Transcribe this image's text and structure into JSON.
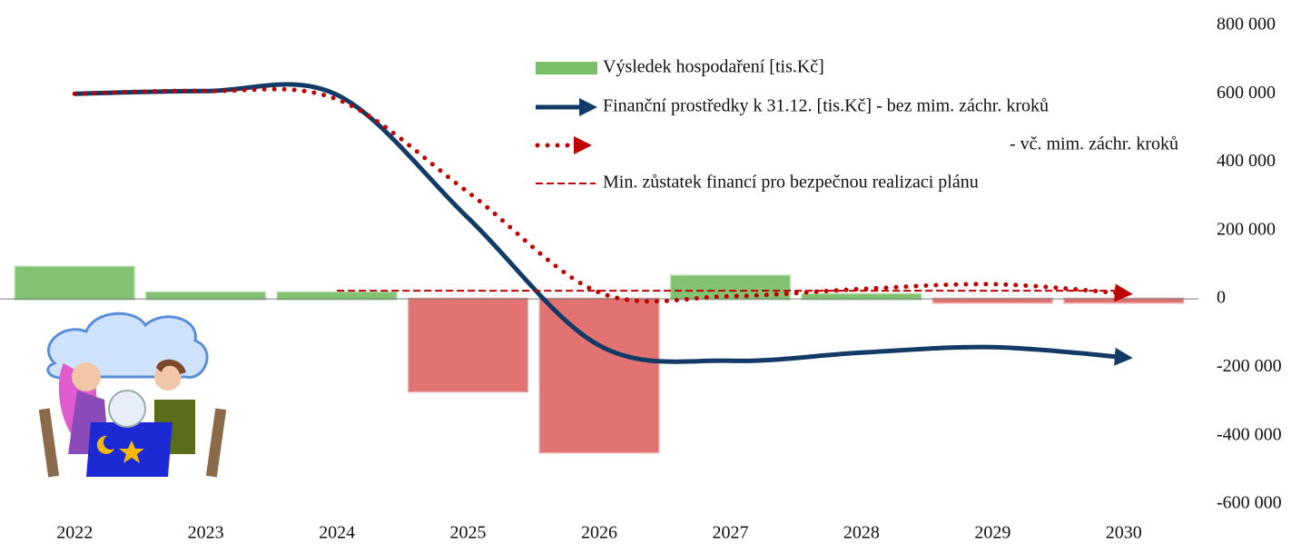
{
  "chart_data": {
    "type": "bar",
    "categories": [
      "2022",
      "2023",
      "2024",
      "2025",
      "2026",
      "2027",
      "2028",
      "2029",
      "2030"
    ],
    "ylim": [
      -600000,
      800000
    ],
    "yticks": [
      {
        "value": -600000,
        "label": "-600 000"
      },
      {
        "value": -400000,
        "label": "-400 000"
      },
      {
        "value": -200000,
        "label": "-200 000"
      },
      0,
      {
        "value": 200000,
        "label": "200 000"
      },
      {
        "value": 400000,
        "label": "400 000"
      },
      {
        "value": 600000,
        "label": "600 000"
      },
      {
        "value": 800000,
        "label": "800 000"
      }
    ],
    "series": [
      {
        "name": "Výsledek hospodaření [tis.Kč]",
        "style": "bar",
        "color": "#7cbf6a",
        "colors": [
          "#7cbf6a",
          "#7cbf6a",
          "#7cbf6a",
          "#e06c6a",
          "#e06c6a",
          "#7cbf6a",
          "#7cbf6a",
          "#e06c6a",
          "#e06c6a"
        ],
        "values": [
          93000,
          18000,
          18000,
          -270000,
          -448000,
          67000,
          13000,
          -10000,
          -10000
        ]
      },
      {
        "name": "Finanční prostředky k 31.12. [tis.Kč] - bez mim. záchr. kroků",
        "style": "line",
        "color": "#123a66",
        "values": [
          600000,
          608000,
          597000,
          237000,
          -136000,
          -181000,
          -157000,
          -141000,
          -171000
        ]
      },
      {
        "name": "- vč. mim. záchr. kroků",
        "style": "dotted",
        "color": "#c00000",
        "values": [
          600000,
          608000,
          584000,
          312000,
          19000,
          8000,
          29000,
          43000,
          16000
        ]
      },
      {
        "name": "Min. zůstatek financí pro bezpečnou realizaci plánu",
        "style": "dashed",
        "color": "#c00000",
        "values": [
          null,
          null,
          24000,
          24000,
          24000,
          24000,
          24000,
          24000,
          24000
        ]
      }
    ]
  }
}
